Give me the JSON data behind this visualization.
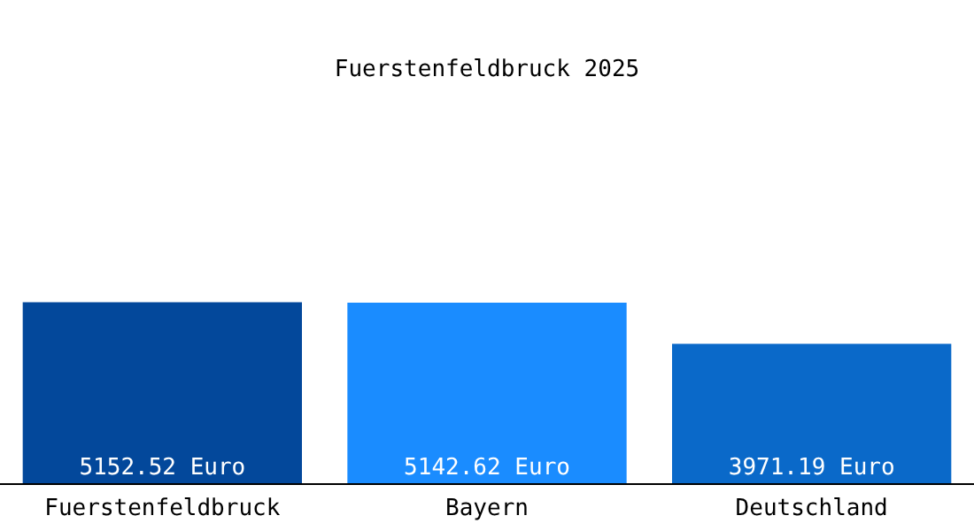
{
  "chart_data": {
    "type": "bar",
    "title": "Fuerstenfeldbruck 2025",
    "categories": [
      "Fuerstenfeldbruck",
      "Bayern",
      "Deutschland"
    ],
    "values": [
      5152.52,
      5142.62,
      3971.19
    ],
    "colors": [
      "#03489b",
      "#1a8cff",
      "#0a69c9"
    ],
    "value_labels": [
      "5152.52 Euro",
      "5142.62 Euro",
      "3971.19 Euro"
    ]
  }
}
